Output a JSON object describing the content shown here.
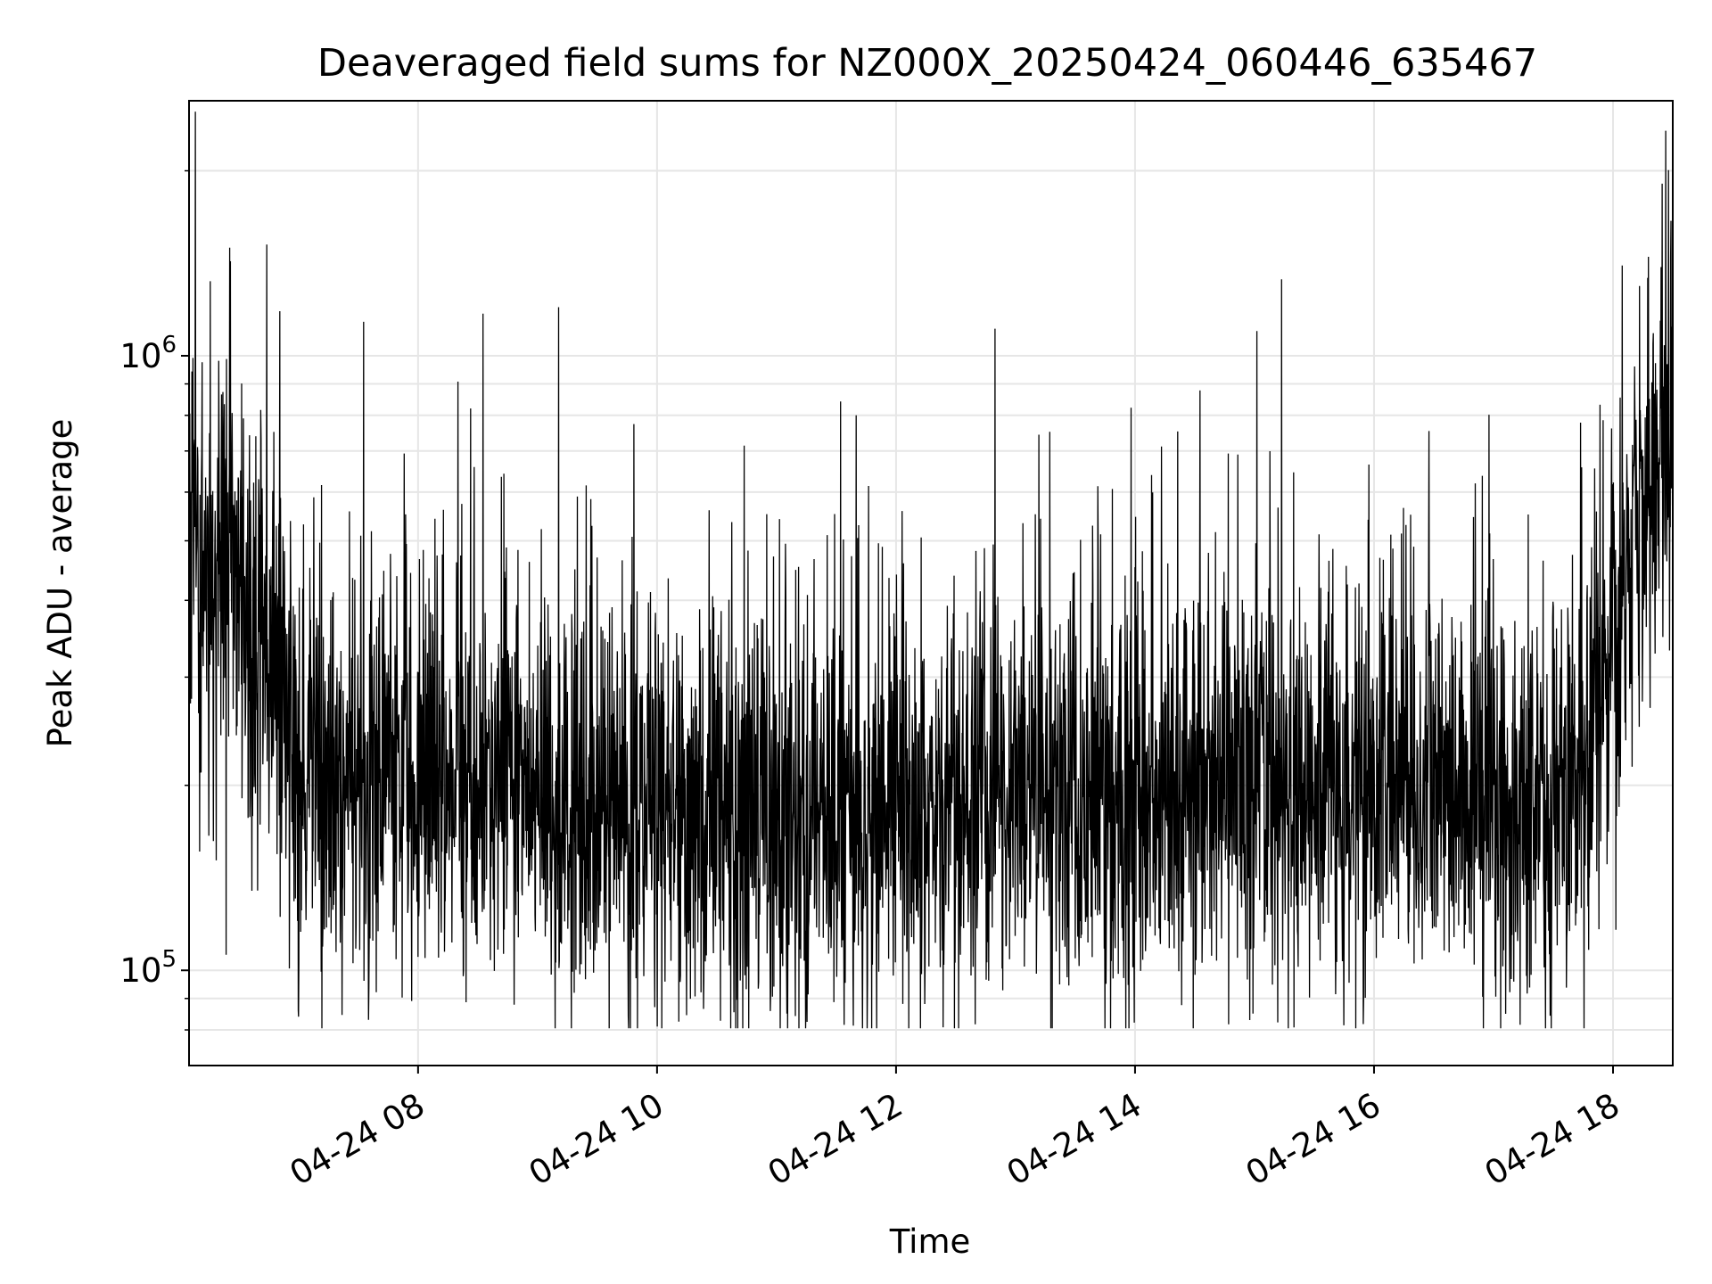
{
  "chart_data": {
    "type": "line",
    "title": "Deaveraged field sums for NZ000X_20250424_060446_635467",
    "xlabel": "Time",
    "ylabel": "Peak ADU - average",
    "yscale": "log",
    "ylim": [
      70000,
      2600000
    ],
    "xlim": [
      "04-24 06:05",
      "04-24 18:30"
    ],
    "x_ticks": [
      "04-24 08",
      "04-24 10",
      "04-24 12",
      "04-24 14",
      "04-24 16",
      "04-24 18"
    ],
    "y_ticks": [
      {
        "base": "10",
        "exp": "5",
        "value": 100000
      },
      {
        "base": "10",
        "exp": "6",
        "value": 1000000
      }
    ],
    "grid": true,
    "line_color": "#000000",
    "series": [
      {
        "x": [
          "04-24 06:05",
          "04-24 06:15",
          "04-24 06:25",
          "04-24 06:35",
          "04-24 06:45",
          "04-24 07:00",
          "04-24 07:15",
          "04-24 07:30",
          "04-24 08:00",
          "04-24 08:30",
          "04-24 09:00",
          "04-24 09:30",
          "04-24 10:00",
          "04-24 10:30",
          "04-24 11:00",
          "04-24 11:30",
          "04-24 12:00",
          "04-24 12:30",
          "04-24 13:00",
          "04-24 13:30",
          "04-24 14:00",
          "04-24 14:30",
          "04-24 15:00",
          "04-24 15:30",
          "04-24 16:00",
          "04-24 16:30",
          "04-24 17:00",
          "04-24 17:30",
          "04-24 17:45",
          "04-24 18:00",
          "04-24 18:10",
          "04-24 18:20",
          "04-24 18:30"
        ],
        "y": [
          500000,
          400000,
          550000,
          350000,
          300000,
          230000,
          200000,
          190000,
          200000,
          200000,
          190000,
          185000,
          175000,
          180000,
          175000,
          175000,
          180000,
          190000,
          195000,
          190000,
          190000,
          195000,
          195000,
          195000,
          200000,
          190000,
          185000,
          180000,
          200000,
          330000,
          450000,
          650000,
          700000
        ]
      }
    ]
  }
}
